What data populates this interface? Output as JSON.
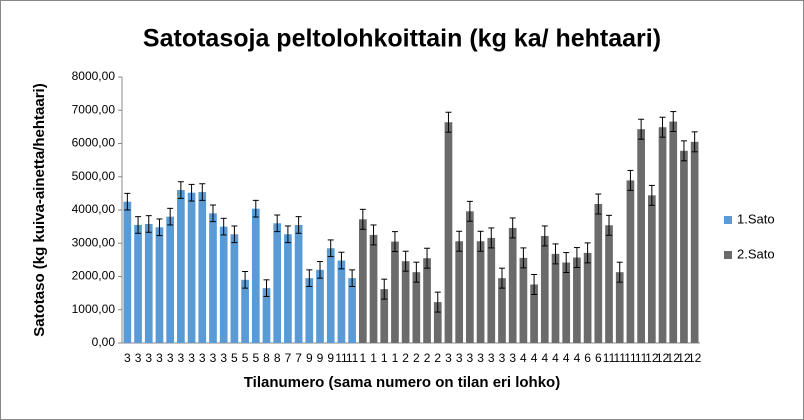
{
  "chart_data": {
    "type": "bar",
    "title": "Satotasoja peltolohkoittain (kg ka/ hehtaari)",
    "x_label": "Tilanumero (sama numero on tilan eri lohko)",
    "y_label": "Satotaso (kg kuiva-ainetta/hehtaari)",
    "categories": [
      "3",
      "3",
      "3",
      "3",
      "3",
      "3",
      "3",
      "3",
      "3",
      "3",
      "5",
      "5",
      "5",
      "8",
      "8",
      "7",
      "7",
      "9",
      "9",
      "9",
      "11",
      "11",
      "1",
      "1",
      "1",
      "1",
      "2",
      "2",
      "2",
      "2",
      "3",
      "3",
      "3",
      "3",
      "3",
      "3",
      "3",
      "4",
      "4",
      "4",
      "4",
      "4",
      "4",
      "6",
      "6",
      "11",
      "11",
      "11",
      "11",
      "12",
      "12",
      "12",
      "12",
      "12"
    ],
    "series": [
      {
        "name": "1.Sato",
        "color": "#5b9bd5",
        "values": [
          4250,
          3550,
          3580,
          3480,
          3800,
          4600,
          4520,
          4540,
          3900,
          3500,
          3270,
          1900,
          4040,
          1650,
          3600,
          3270,
          3550,
          1950,
          2200,
          2850,
          2480,
          1950,
          null,
          null,
          null,
          null,
          null,
          null,
          null,
          null,
          null,
          null,
          null,
          null,
          null,
          null,
          null,
          null,
          null,
          null,
          null,
          null,
          null,
          null,
          null,
          null,
          null,
          null,
          null,
          null,
          null,
          null,
          null,
          null
        ],
        "errors": [
          250,
          250,
          250,
          250,
          250,
          250,
          250,
          250,
          250,
          250,
          250,
          250,
          250,
          250,
          250,
          250,
          250,
          250,
          250,
          250,
          250,
          250,
          null,
          null,
          null,
          null,
          null,
          null,
          null,
          null,
          null,
          null,
          null,
          null,
          null,
          null,
          null,
          null,
          null,
          null,
          null,
          null,
          null,
          null,
          null,
          null,
          null,
          null,
          null,
          null,
          null,
          null,
          null,
          null
        ]
      },
      {
        "name": "2.Sato",
        "color": "#6b6b6b",
        "values": [
          null,
          null,
          null,
          null,
          null,
          null,
          null,
          null,
          null,
          null,
          null,
          null,
          null,
          null,
          null,
          null,
          null,
          null,
          null,
          null,
          null,
          null,
          3720,
          3250,
          1620,
          3050,
          2460,
          2130,
          2550,
          1230,
          6640,
          3060,
          3960,
          3060,
          3160,
          1950,
          3460,
          2560,
          1760,
          3220,
          2680,
          2420,
          2570,
          2710,
          4180,
          3540,
          2130,
          4890,
          6430,
          4440,
          6490,
          6660,
          5780,
          6050
        ],
        "errors": [
          null,
          null,
          null,
          null,
          null,
          null,
          null,
          null,
          null,
          null,
          null,
          null,
          null,
          null,
          null,
          null,
          null,
          null,
          null,
          null,
          null,
          null,
          300,
          300,
          300,
          300,
          300,
          300,
          300,
          300,
          300,
          300,
          300,
          300,
          300,
          300,
          300,
          300,
          300,
          300,
          300,
          300,
          300,
          300,
          300,
          300,
          300,
          300,
          300,
          300,
          300,
          300,
          300,
          300
        ]
      }
    ],
    "ylim": [
      0,
      8000
    ],
    "yticks": [
      {
        "value": 0,
        "label": "0,00"
      },
      {
        "value": 1000,
        "label": "1000,00"
      },
      {
        "value": 2000,
        "label": "2000,00"
      },
      {
        "value": 3000,
        "label": "3000,00"
      },
      {
        "value": 4000,
        "label": "4000,00"
      },
      {
        "value": 5000,
        "label": "5000,00"
      },
      {
        "value": 6000,
        "label": "6000,00"
      },
      {
        "value": 7000,
        "label": "7000,00"
      },
      {
        "value": 8000,
        "label": "8000,00"
      }
    ],
    "grid": false,
    "legend": "right"
  }
}
